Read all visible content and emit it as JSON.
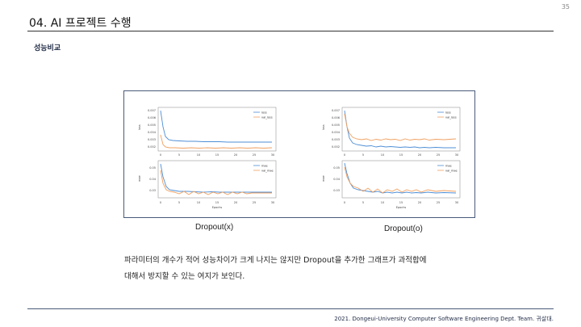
{
  "page_number": "35",
  "title": "04. AI 프로젝트 수행",
  "section": "성능비교",
  "figures": [
    {
      "caption": "Dropout(x)",
      "loss_panel": {
        "yticks": [
          "0.007",
          "0.006",
          "0.005",
          "0.004",
          "0.003",
          "0.002"
        ],
        "ylabel": "loss",
        "legend": [
          "loss",
          "val_loss"
        ]
      },
      "mae_panel": {
        "yticks": [
          "0.05",
          "0.04",
          "0.03"
        ],
        "ylabel": "mae",
        "legend": [
          "mae",
          "val_mae"
        ],
        "xlabel": "Epochs"
      },
      "xticks": [
        "0",
        "5",
        "10",
        "15",
        "20",
        "25",
        "30"
      ]
    },
    {
      "caption": "Dropout(o)",
      "loss_panel": {
        "yticks": [
          "0.007",
          "0.006",
          "0.005",
          "0.004",
          "0.003",
          "0.002"
        ],
        "ylabel": "loss",
        "legend": [
          "loss",
          "val_loss"
        ]
      },
      "mae_panel": {
        "yticks": [
          "0.05",
          "0.04",
          "0.03"
        ],
        "ylabel": "mae",
        "legend": [
          "mae",
          "val_mae"
        ],
        "xlabel": "Epochs"
      },
      "xticks": [
        "0",
        "5",
        "10",
        "15",
        "20",
        "25",
        "30"
      ]
    }
  ],
  "description": [
    "파라미터의 개수가 적어 성능차이가 크게 나지는 않지만 Dropout을 추가한 그래프가 과적합에",
    "대해서 방지할 수 있는 여지가 보인다."
  ],
  "footer": "2021. Dongeui-University Computer Software Engineering Dept. Team. 귀살대.",
  "colors": {
    "train": "#4f8fd6",
    "val": "#f0a060",
    "accent": "#1f2a44"
  }
}
